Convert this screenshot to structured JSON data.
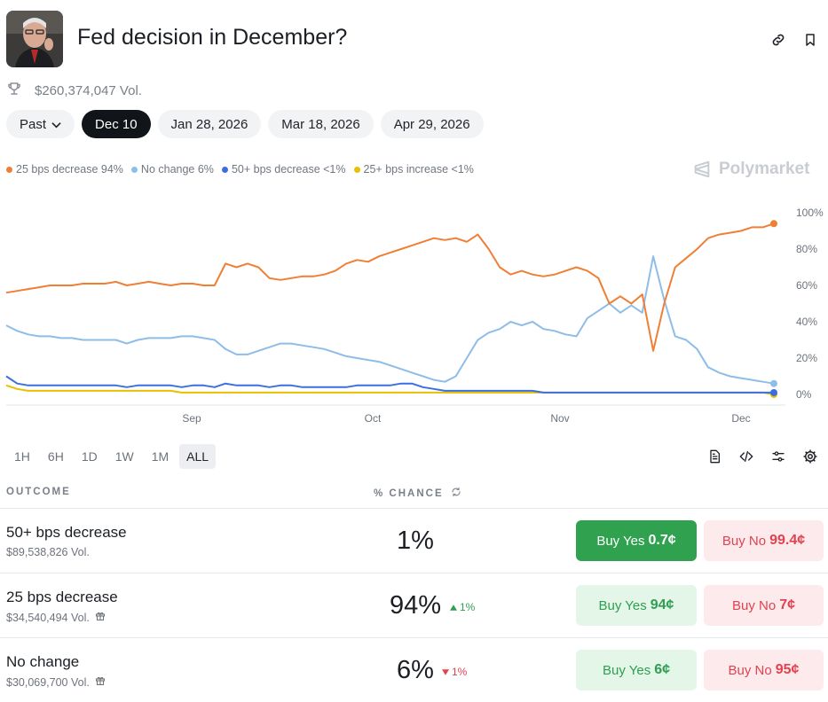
{
  "market": {
    "title": "Fed decision in December?",
    "volume": "$260,374,047 Vol."
  },
  "header_icons": [
    "link-icon",
    "bookmark-icon"
  ],
  "date_tabs": [
    {
      "label": "Past",
      "dropdown": true
    },
    {
      "label": "Dec 10",
      "active": true
    },
    {
      "label": "Jan 28, 2026"
    },
    {
      "label": "Mar 18, 2026"
    },
    {
      "label": "Apr 29, 2026"
    }
  ],
  "legend": [
    {
      "label": "25 bps decrease 94%",
      "color": "#f07f35"
    },
    {
      "label": "No change 6%",
      "color": "#8dbde8"
    },
    {
      "label": "50+ bps decrease <1%",
      "color": "#3b6fe0"
    },
    {
      "label": "25+ bps increase <1%",
      "color": "#e8c000"
    }
  ],
  "brand": {
    "name": "Polymarket"
  },
  "chart_data": {
    "type": "line",
    "x_ticks": [
      "Sep",
      "Oct",
      "Nov",
      "Dec"
    ],
    "y_ticks": [
      "100%",
      "80%",
      "60%",
      "40%",
      "20%",
      "0%"
    ],
    "ylim": [
      0,
      100
    ],
    "series": [
      {
        "name": "25 bps decrease",
        "color": "#f07f35",
        "values": [
          56,
          57,
          58,
          59,
          60,
          60,
          60,
          61,
          61,
          61,
          62,
          60,
          61,
          62,
          61,
          60,
          61,
          61,
          60,
          60,
          72,
          70,
          72,
          70,
          64,
          63,
          64,
          65,
          65,
          66,
          68,
          72,
          74,
          73,
          76,
          78,
          80,
          82,
          84,
          86,
          85,
          86,
          84,
          88,
          80,
          70,
          66,
          68,
          66,
          65,
          66,
          68,
          70,
          68,
          64,
          50,
          54,
          50,
          55,
          24,
          50,
          70,
          75,
          80,
          86,
          88,
          89,
          90,
          92,
          92,
          94
        ]
      },
      {
        "name": "No change",
        "color": "#8dbde8",
        "values": [
          38,
          35,
          33,
          32,
          32,
          31,
          31,
          30,
          30,
          30,
          30,
          28,
          30,
          31,
          31,
          31,
          32,
          32,
          31,
          30,
          25,
          22,
          22,
          24,
          26,
          28,
          28,
          27,
          26,
          25,
          23,
          21,
          20,
          19,
          18,
          16,
          14,
          12,
          10,
          8,
          7,
          10,
          20,
          30,
          34,
          36,
          40,
          38,
          40,
          36,
          35,
          33,
          32,
          42,
          46,
          50,
          45,
          49,
          45,
          76,
          52,
          32,
          30,
          25,
          15,
          12,
          10,
          9,
          8,
          7,
          6
        ]
      },
      {
        "name": "50+ bps decrease",
        "color": "#3b6fe0",
        "values": [
          10,
          6,
          5,
          5,
          5,
          5,
          5,
          5,
          5,
          5,
          5,
          4,
          5,
          5,
          5,
          5,
          4,
          5,
          5,
          4,
          6,
          5,
          5,
          5,
          4,
          5,
          5,
          4,
          4,
          4,
          4,
          4,
          5,
          5,
          5,
          5,
          6,
          6,
          4,
          3,
          2,
          2,
          2,
          2,
          2,
          2,
          2,
          2,
          2,
          1,
          1,
          1,
          1,
          1,
          1,
          1,
          1,
          1,
          1,
          1,
          1,
          1,
          1,
          1,
          1,
          1,
          1,
          1,
          1,
          1,
          1
        ]
      },
      {
        "name": "25+ bps increase",
        "color": "#e8c000",
        "values": [
          5,
          3,
          2,
          2,
          2,
          2,
          2,
          2,
          2,
          2,
          2,
          2,
          2,
          2,
          2,
          2,
          1,
          1,
          1,
          1,
          1,
          1,
          1,
          1,
          1,
          1,
          1,
          1,
          1,
          1,
          1,
          1,
          1,
          1,
          1,
          1,
          1,
          1,
          1,
          1,
          1,
          1,
          1,
          1,
          1,
          1,
          1,
          1,
          1,
          1,
          1,
          1,
          1,
          1,
          1,
          1,
          1,
          1,
          1,
          1,
          1,
          1,
          1,
          1,
          1,
          1,
          1,
          1,
          1,
          1,
          0
        ]
      }
    ]
  },
  "range_tabs": [
    {
      "label": "1H"
    },
    {
      "label": "6H"
    },
    {
      "label": "1D"
    },
    {
      "label": "1W"
    },
    {
      "label": "1M"
    },
    {
      "label": "ALL",
      "active": true
    }
  ],
  "toolbar_icons": [
    "document-icon",
    "embed-code-icon",
    "filter-sliders-icon",
    "settings-gear-icon"
  ],
  "table": {
    "col_outcome": "OUTCOME",
    "col_chance": "% CHANCE",
    "rows": [
      {
        "name": "50+ bps decrease",
        "volume": "$89,538,826 Vol.",
        "gift": false,
        "chance": "1%",
        "delta": "",
        "delta_dir": "",
        "yes_label": "Buy Yes",
        "yes_price": "0.7¢",
        "no_label": "Buy No",
        "no_price": "99.4¢",
        "yes_style": "solid"
      },
      {
        "name": "25 bps decrease",
        "volume": "$34,540,494 Vol.",
        "gift": true,
        "chance": "94%",
        "delta": "1%",
        "delta_dir": "up",
        "yes_label": "Buy Yes",
        "yes_price": "94¢",
        "no_label": "Buy No",
        "no_price": "7¢",
        "yes_style": "soft"
      },
      {
        "name": "No change",
        "volume": "$30,069,700 Vol.",
        "gift": true,
        "chance": "6%",
        "delta": "1%",
        "delta_dir": "down",
        "yes_label": "Buy Yes",
        "yes_price": "6¢",
        "no_label": "Buy No",
        "no_price": "95¢",
        "yes_style": "soft"
      }
    ]
  }
}
